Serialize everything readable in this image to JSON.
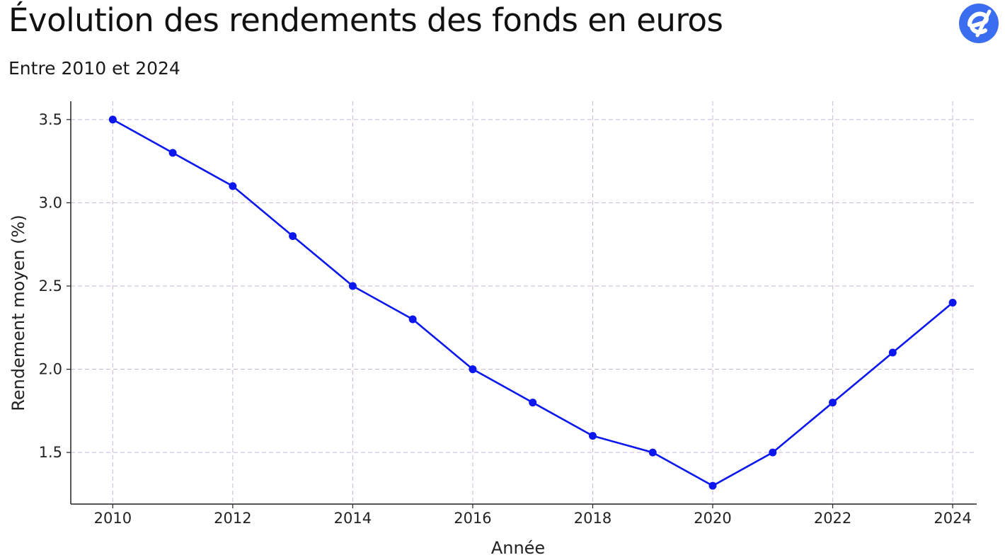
{
  "header": {
    "title": "Évolution des rendements des fonds en euros",
    "subtitle": "Entre 2010 et 2024",
    "logo_icon": "e-logo-icon",
    "logo_color": "#3a6df0"
  },
  "chart_data": {
    "type": "line",
    "title": "Évolution des rendements des fonds en euros",
    "subtitle": "Entre 2010 et 2024",
    "xlabel": "Année",
    "ylabel": "Rendement moyen (%)",
    "x": [
      2010,
      2011,
      2012,
      2013,
      2014,
      2015,
      2016,
      2017,
      2018,
      2019,
      2020,
      2021,
      2022,
      2023,
      2024
    ],
    "series": [
      {
        "values": [
          3.5,
          3.3,
          3.1,
          2.8,
          2.5,
          2.3,
          2.0,
          1.8,
          1.6,
          1.5,
          1.3,
          1.5,
          1.8,
          2.1,
          2.4
        ],
        "color": "#0b17ee"
      }
    ],
    "xticks": [
      "2010",
      "2012",
      "2014",
      "2016",
      "2018",
      "2020",
      "2022",
      "2024"
    ],
    "yticks": [
      "1.5",
      "2.0",
      "2.5",
      "3.0",
      "3.5"
    ],
    "xlim": [
      2009.3,
      2024.4
    ],
    "ylim": [
      1.19,
      3.61
    ],
    "grid": true,
    "grid_color": "#c9b8d6"
  }
}
